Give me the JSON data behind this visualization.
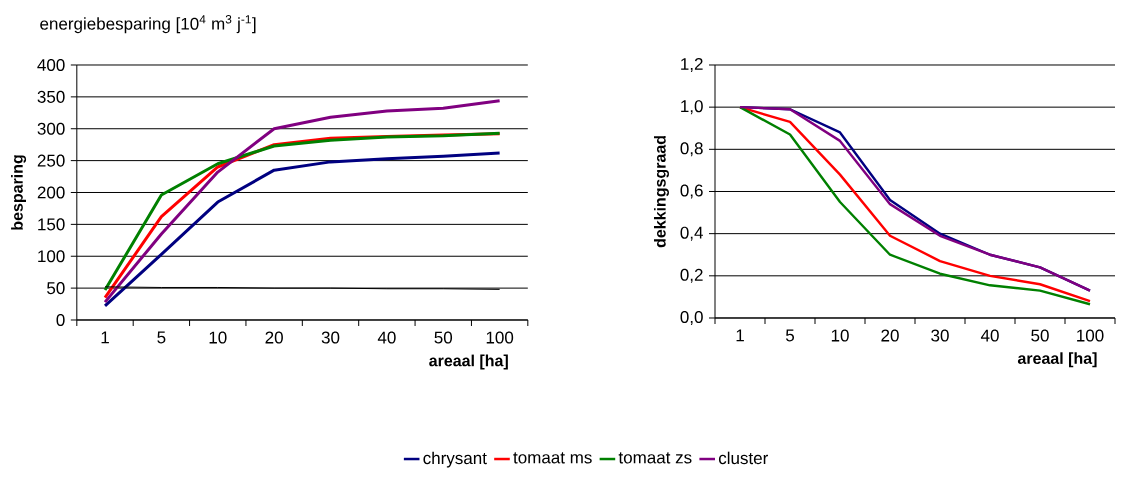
{
  "chart_data": [
    {
      "type": "line",
      "title": "energiebesparing [10$^{4}$ m$^{3}$ j$^{-1}$]",
      "xlabel": "areaal [ha]",
      "ylabel": "besparing",
      "categories": [
        "1",
        "5",
        "10",
        "20",
        "30",
        "40",
        "50",
        "100"
      ],
      "ylim": [
        0,
        400
      ],
      "yticks": [
        0,
        50,
        100,
        150,
        200,
        250,
        300,
        350,
        400
      ],
      "grid": "y",
      "legend": "bottom",
      "marker": "none",
      "series": [
        {
          "name": "chrysant",
          "color": "#000080",
          "values": [
            22,
            103,
            185,
            235,
            248,
            253,
            257,
            262
          ]
        },
        {
          "name": "tomaat ms",
          "color": "#ff0000",
          "values": [
            35,
            162,
            240,
            275,
            285,
            288,
            290,
            292
          ]
        },
        {
          "name": "tomaat zs",
          "color": "#008000",
          "values": [
            47,
            196,
            245,
            273,
            282,
            287,
            289,
            293
          ]
        },
        {
          "name": "cluster",
          "color": "#800080",
          "values": [
            28,
            135,
            232,
            300,
            318,
            328,
            332,
            344
          ]
        },
        {
          "color": "#000000",
          "values": [
            52,
            51,
            51,
            50,
            50,
            49,
            49,
            48
          ]
        }
      ]
    },
    {
      "type": "line",
      "xlabel": "areaal [ha]",
      "ylabel": "dekkingsgraad",
      "categories": [
        "1",
        "5",
        "10",
        "20",
        "30",
        "40",
        "50",
        "100"
      ],
      "ylim": [
        0,
        1.2
      ],
      "yticks": [
        {
          "value": 0,
          "label": "0,0"
        },
        {
          "value": 0.2,
          "label": "0,2"
        },
        {
          "value": 0.4,
          "label": "0,4"
        },
        {
          "value": 0.6,
          "label": "0,6"
        },
        {
          "value": 0.8,
          "label": "0,8"
        },
        {
          "value": 1.0,
          "label": "1,0"
        },
        {
          "value": 1.2,
          "label": "1,2"
        }
      ],
      "grid": "y",
      "marker": "none",
      "series": [
        {
          "color": "#000080",
          "values": [
            1.0,
            0.99,
            0.88,
            0.56,
            0.4,
            0.3,
            0.24,
            0.13
          ]
        },
        {
          "color": "#ff0000",
          "values": [
            1.0,
            0.93,
            0.68,
            0.39,
            0.27,
            0.2,
            0.16,
            0.08
          ]
        },
        {
          "color": "#008000",
          "values": [
            1.0,
            0.87,
            0.55,
            0.3,
            0.21,
            0.155,
            0.13,
            0.065
          ]
        },
        {
          "color": "#800080",
          "values": [
            1.0,
            0.99,
            0.84,
            0.54,
            0.39,
            0.3,
            0.24,
            0.13
          ]
        }
      ]
    }
  ]
}
